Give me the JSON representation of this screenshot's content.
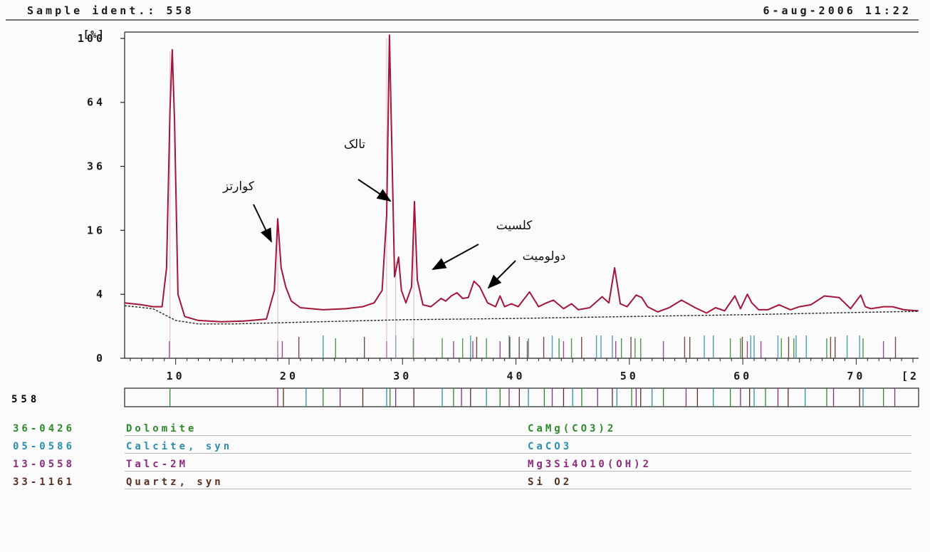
{
  "header": {
    "sample_ident": "Sample ident.: 558",
    "datetime": "6-aug-2006 11:22"
  },
  "chart_data": {
    "type": "line",
    "title": "",
    "ylabel": "[%]",
    "xlabel": "[2",
    "x_range": [
      5.5,
      75.5
    ],
    "y_scale": "sqrt",
    "y_ticks": [
      0,
      4,
      16,
      36,
      64,
      100
    ],
    "y_tick_labels": [
      "0",
      "4",
      "16",
      "36",
      "64",
      "100"
    ],
    "x_ticks": [
      10,
      20,
      30,
      40,
      50,
      60,
      70
    ],
    "x_tick_labels": [
      "10",
      "20",
      "30",
      "40",
      "50",
      "60",
      "70"
    ],
    "colors": {
      "pattern": "#a31539",
      "background_line": "#222222",
      "dolomite": "#2c8a2c",
      "calcite": "#2b8fb0",
      "talc": "#8a2c7a",
      "quartz": "#5a2e1e"
    },
    "series": [
      {
        "x": [
          5.5,
          7.0,
          8.0,
          8.8,
          9.2,
          9.5,
          9.7,
          9.9,
          10.2,
          10.8,
          12.0,
          14.0,
          16.0,
          18.0,
          18.7,
          19.0,
          19.3,
          19.7,
          20.2,
          21.0,
          23.0,
          25.0,
          26.5,
          27.5,
          28.2,
          28.6,
          28.85,
          29.1,
          29.3,
          29.65,
          29.9,
          30.3,
          30.8,
          31.05,
          31.3,
          31.8,
          32.5,
          33.4,
          33.8,
          34.3,
          34.8,
          35.3,
          35.8,
          36.3,
          36.8,
          37.5,
          38.2,
          38.6,
          39.0,
          39.6,
          40.2,
          41.2,
          42.0,
          42.7,
          43.3,
          44.2,
          44.9,
          45.5,
          46.5,
          47.6,
          48.2,
          48.7,
          49.2,
          49.8,
          50.6,
          51.1,
          51.6,
          52.5,
          53.5,
          54.6,
          55.8,
          56.8,
          57.6,
          58.4,
          59.3,
          59.8,
          60.4,
          60.8,
          61.4,
          62.2,
          63.2,
          64.2,
          65.0,
          66.0,
          67.2,
          68.5,
          69.5,
          70.4,
          70.8,
          71.3,
          72.4,
          73.2,
          74.2,
          75.5
        ],
        "values": [
          3.0,
          2.8,
          2.6,
          2.6,
          8.0,
          60.0,
          93.0,
          55.0,
          4.0,
          1.7,
          1.4,
          1.3,
          1.35,
          1.5,
          4.5,
          19.0,
          8.0,
          5.0,
          3.2,
          2.5,
          2.3,
          2.4,
          2.6,
          3.0,
          4.5,
          20.0,
          102.0,
          35.0,
          6.5,
          10.0,
          4.5,
          3.0,
          5.0,
          24.0,
          6.0,
          2.8,
          2.6,
          3.5,
          3.2,
          3.8,
          4.2,
          3.5,
          3.6,
          5.8,
          5.0,
          3.0,
          2.6,
          3.8,
          2.6,
          2.9,
          2.6,
          4.3,
          2.6,
          3.0,
          3.3,
          2.4,
          2.9,
          2.3,
          2.5,
          3.7,
          3.0,
          8.0,
          2.9,
          2.6,
          3.9,
          3.6,
          2.6,
          2.1,
          2.5,
          3.3,
          2.5,
          2.0,
          2.5,
          2.2,
          3.8,
          2.4,
          4.0,
          3.0,
          2.3,
          2.3,
          2.8,
          2.3,
          2.6,
          2.8,
          3.8,
          3.6,
          2.4,
          3.9,
          2.6,
          2.4,
          2.6,
          2.6,
          2.3,
          2.2
        ]
      },
      {
        "x": [
          5.5,
          8.0,
          10.0,
          12.0,
          15.0,
          20.0,
          30.0,
          40.0,
          50.0,
          60.0,
          70.0,
          75.5
        ],
        "values": [
          2.7,
          2.4,
          1.4,
          1.15,
          1.15,
          1.25,
          1.45,
          1.55,
          1.7,
          1.85,
          2.05,
          2.15
        ]
      }
    ],
    "reference_sticks": {
      "dolomite": [
        24.1,
        30.95,
        33.5,
        35.3,
        37.4,
        41.1,
        43.8,
        44.9,
        49.3,
        50.5,
        51.0,
        58.9,
        59.8,
        63.4,
        64.5,
        67.4,
        70.6
      ],
      "calcite": [
        23.0,
        29.4,
        36.0,
        39.4,
        43.2,
        47.1,
        47.5,
        48.5,
        56.6,
        57.4,
        60.7,
        61.0,
        63.1,
        64.7,
        65.6,
        69.2,
        70.3
      ],
      "talc": [
        9.45,
        19.0,
        19.4,
        28.6,
        34.5,
        36.2,
        38.6,
        41.0,
        44.2,
        48.8,
        53.0,
        60.4,
        61.6,
        72.4
      ],
      "quartz": [
        20.86,
        26.64,
        36.54,
        39.46,
        40.29,
        42.45,
        45.79,
        50.14,
        54.87,
        55.33,
        59.96,
        64.04,
        67.74,
        68.14,
        73.46
      ]
    },
    "strip_sticks": [
      9.5,
      19.0,
      19.5,
      21.5,
      23.0,
      24.5,
      26.5,
      28.6,
      28.9,
      29.4,
      31.0,
      33.5,
      34.5,
      35.2,
      36.0,
      37.4,
      38.6,
      39.4,
      40.3,
      41.1,
      42.5,
      43.2,
      44.2,
      45.0,
      45.8,
      47.2,
      48.5,
      48.9,
      50.2,
      50.6,
      51.0,
      52.0,
      53.0,
      55.0,
      56.0,
      57.4,
      58.9,
      59.8,
      60.6,
      61.0,
      62.0,
      63.1,
      64.0,
      65.5,
      67.4,
      68.0,
      70.3,
      70.6,
      72.4,
      73.4
    ],
    "annotations": [
      {
        "label": "کوارتز",
        "peak_x": 19.0
      },
      {
        "label": "تالک",
        "peak_x": 28.85
      },
      {
        "label": "کلسیت",
        "peak_x": 31.05
      },
      {
        "label": "دولومیت",
        "peak_x": 36.3
      }
    ]
  },
  "sample_strip_label": "558",
  "references": [
    {
      "code": "36-0426",
      "name": "Dolomite",
      "formula": "CaMg(CO3)2",
      "color": "#2c8a2c"
    },
    {
      "code": "05-0586",
      "name": "Calcite, syn",
      "formula": "CaCO3",
      "color": "#2b8fb0"
    },
    {
      "code": "13-0558",
      "name": "Talc-2M",
      "formula": "Mg3Si4O10(OH)2",
      "color": "#8a2c7a"
    },
    {
      "code": "33-1161",
      "name": "Quartz, syn",
      "formula": "Si O2",
      "color": "#5a2e1e"
    }
  ],
  "colors": {
    "sample_label": "#8b1a2b",
    "axis": "#222222"
  }
}
